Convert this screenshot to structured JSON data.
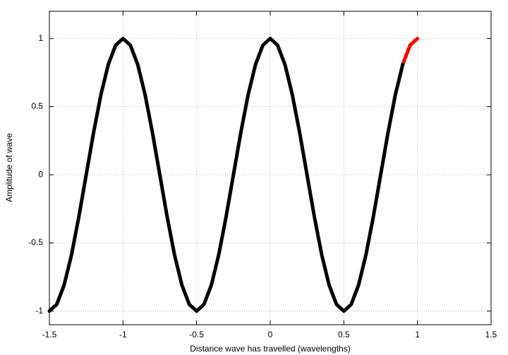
{
  "chart_data": {
    "type": "line",
    "xlabel": "Distance wave has travelled (wavelengths)",
    "ylabel": "Amplitude of wave",
    "xlim": [
      -1.5,
      1.5
    ],
    "ylim": [
      -1.1,
      1.2
    ],
    "xticks": [
      -1.5,
      -1,
      -0.5,
      0,
      0.5,
      1,
      1.5
    ],
    "yticks": [
      -1,
      -0.5,
      0,
      0.5,
      1
    ],
    "grid": true,
    "series": [
      {
        "color": "#ff0000",
        "x": [
          0.9,
          0.95,
          1
        ],
        "values": [
          0.809,
          0.951,
          1
        ]
      },
      {
        "color": "#000000",
        "x": [
          -1.5,
          -1.45,
          -1.4,
          -1.35,
          -1.3,
          -1.25,
          -1.2,
          -1.15,
          -1.1,
          -1.05,
          -1,
          -0.95,
          -0.9,
          -0.85,
          -0.8,
          -0.75,
          -0.7,
          -0.65,
          -0.6,
          -0.55,
          -0.5,
          -0.45,
          -0.4,
          -0.35,
          -0.3,
          -0.25,
          -0.2,
          -0.15,
          -0.1,
          -0.05,
          0,
          0.05,
          0.1,
          0.15,
          0.2,
          0.25,
          0.3,
          0.35,
          0.4,
          0.45,
          0.5,
          0.55,
          0.6,
          0.65,
          0.7,
          0.75,
          0.8,
          0.85,
          0.9
        ],
        "values": [
          -1,
          -0.951,
          -0.809,
          -0.588,
          -0.309,
          0,
          0.309,
          0.588,
          0.809,
          0.951,
          1,
          0.951,
          0.809,
          0.588,
          0.309,
          0,
          -0.309,
          -0.588,
          -0.809,
          -0.951,
          -1,
          -0.951,
          -0.809,
          -0.588,
          -0.309,
          0,
          0.309,
          0.588,
          0.809,
          0.951,
          1,
          0.951,
          0.809,
          0.588,
          0.309,
          0,
          -0.309,
          -0.588,
          -0.809,
          -0.951,
          -1,
          -0.951,
          -0.809,
          -0.588,
          -0.309,
          0,
          0.309,
          0.588,
          0.809
        ]
      }
    ]
  }
}
